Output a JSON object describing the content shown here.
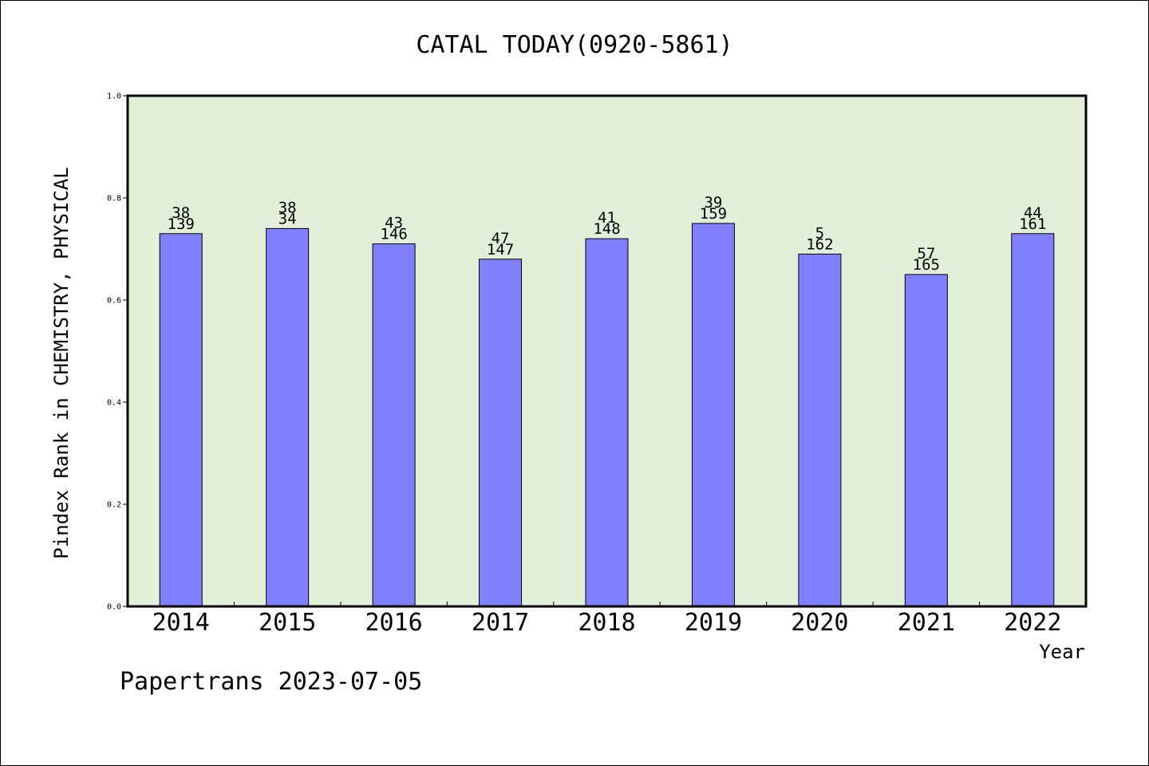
{
  "chart_data": {
    "type": "bar",
    "title": "CATAL TODAY(0920-5861)",
    "xlabel": "Year",
    "ylabel": "Pindex Rank in CHEMISTRY, PHYSICAL",
    "ylim": [
      0.0,
      1.0
    ],
    "yticks": [
      "0.0",
      "0.2",
      "0.4",
      "0.6",
      "0.8",
      "1.0"
    ],
    "categories": [
      "2014",
      "2015",
      "2016",
      "2017",
      "2018",
      "2019",
      "2020",
      "2021",
      "2022"
    ],
    "values": [
      0.73,
      0.74,
      0.71,
      0.68,
      0.72,
      0.75,
      0.69,
      0.65,
      0.73
    ],
    "labels_top": [
      "38",
      "38",
      "43",
      "47",
      "41",
      "39",
      "5",
      "57",
      "44"
    ],
    "labels_bottom": [
      "139",
      "34",
      "146",
      "147",
      "148",
      "159",
      "162",
      "165",
      "161"
    ],
    "grid": false,
    "colors": {
      "bar_fill": "#8080ff",
      "plot_background": "#e2f0d9",
      "axis": "#000000"
    }
  },
  "footer": "Papertrans 2023-07-05"
}
